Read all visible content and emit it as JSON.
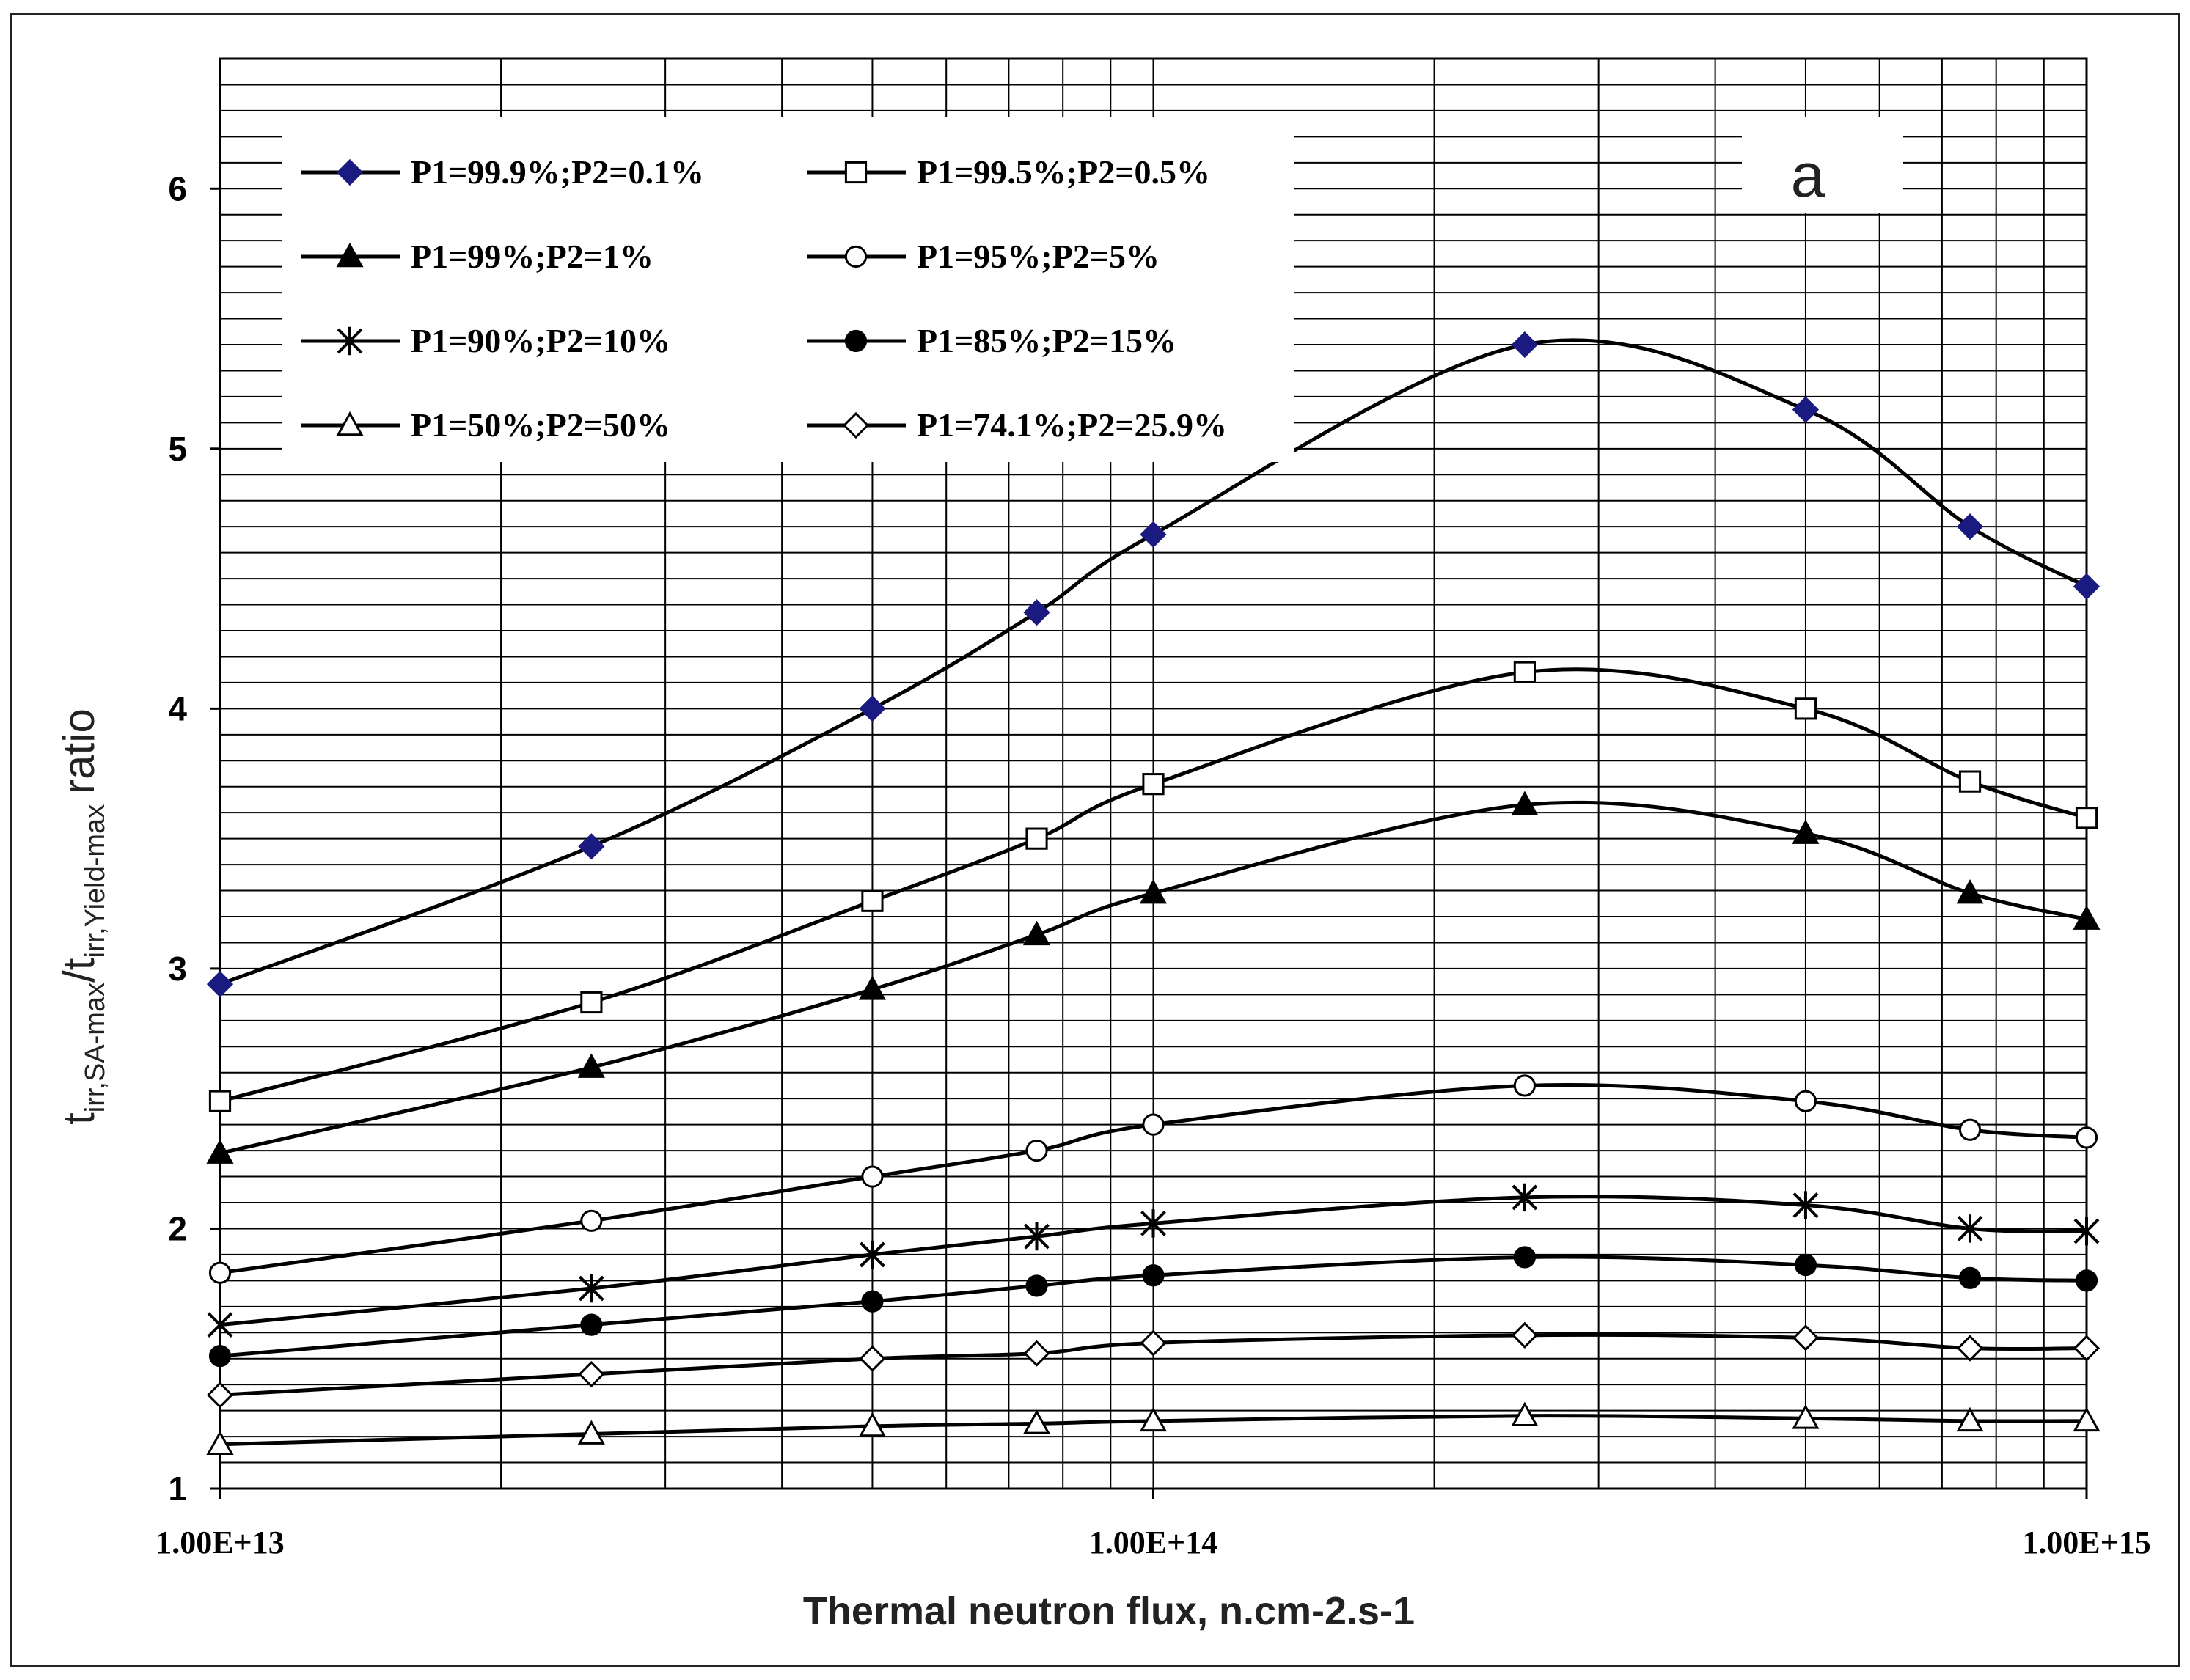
{
  "chart_data": {
    "type": "line",
    "title": "",
    "panel_label": "a",
    "xlabel": "Thermal neutron flux, n.cm-2.s-1",
    "ylabel": {
      "t1": "t",
      "s1": "irr,SA-max",
      "slash": "/",
      "t2": "t",
      "s2": "irr,Yield-max",
      "word": "ratio"
    },
    "x_scale": "log",
    "xlim": [
      10000000000000.0,
      1000000000000000.0
    ],
    "ylim": [
      1,
      6.5
    ],
    "x_tick_labels": [
      {
        "value": 10000000000000.0,
        "label": "1.00E+13"
      },
      {
        "value": 100000000000000.0,
        "label": "1.00E+14"
      },
      {
        "value": 1000000000000000.0,
        "label": "1.00E+15"
      }
    ],
    "y_ticks": [
      1,
      2,
      3,
      4,
      5,
      6
    ],
    "y_tick_labels": [
      "1",
      "2",
      "3",
      "4",
      "5",
      "6"
    ],
    "grid": true,
    "legend_position": "top-left",
    "x": [
      10000000000000.0,
      25000000000000.0,
      50000000000000.0,
      75000000000000.0,
      100000000000000.0,
      250000000000000.0,
      500000000000000.0,
      750000000000000.0,
      1000000000000000.0
    ],
    "series": [
      {
        "name": "P1=99.9%;P2=0.1%",
        "marker": "diamond-filled",
        "color": "#1a1a80",
        "values": [
          2.94,
          3.47,
          4.0,
          4.37,
          4.67,
          5.4,
          5.15,
          4.7,
          4.47
        ]
      },
      {
        "name": "P1=99.5%;P2=0.5%",
        "marker": "square-open",
        "color": "#000000",
        "values": [
          2.49,
          2.87,
          3.26,
          3.5,
          3.71,
          4.14,
          4.0,
          3.72,
          3.58
        ]
      },
      {
        "name": "P1=99%;P2=1%",
        "marker": "triangle-filled",
        "color": "#000000",
        "values": [
          2.29,
          2.62,
          2.92,
          3.13,
          3.29,
          3.63,
          3.52,
          3.29,
          3.19
        ]
      },
      {
        "name": "P1=95%;P2=5%",
        "marker": "circle-open",
        "color": "#000000",
        "values": [
          1.83,
          2.03,
          2.2,
          2.3,
          2.4,
          2.55,
          2.49,
          2.38,
          2.35
        ]
      },
      {
        "name": "P1=90%;P2=10%",
        "marker": "asterisk",
        "color": "#000000",
        "values": [
          1.63,
          1.77,
          1.9,
          1.97,
          2.02,
          2.12,
          2.09,
          2.0,
          1.99
        ]
      },
      {
        "name": "P1=85%;P2=15%",
        "marker": "circle-filled",
        "color": "#000000",
        "values": [
          1.51,
          1.63,
          1.72,
          1.78,
          1.82,
          1.89,
          1.86,
          1.81,
          1.8
        ]
      },
      {
        "name": "P1=50%;P2=50%",
        "marker": "triangle-open",
        "color": "#000000",
        "values": [
          1.17,
          1.21,
          1.24,
          1.25,
          1.26,
          1.28,
          1.27,
          1.26,
          1.26
        ]
      },
      {
        "name": "P1=74.1%;P2=25.9%",
        "marker": "diamond-open",
        "color": "#000000",
        "values": [
          1.36,
          1.44,
          1.5,
          1.52,
          1.56,
          1.59,
          1.58,
          1.54,
          1.54
        ]
      }
    ]
  }
}
